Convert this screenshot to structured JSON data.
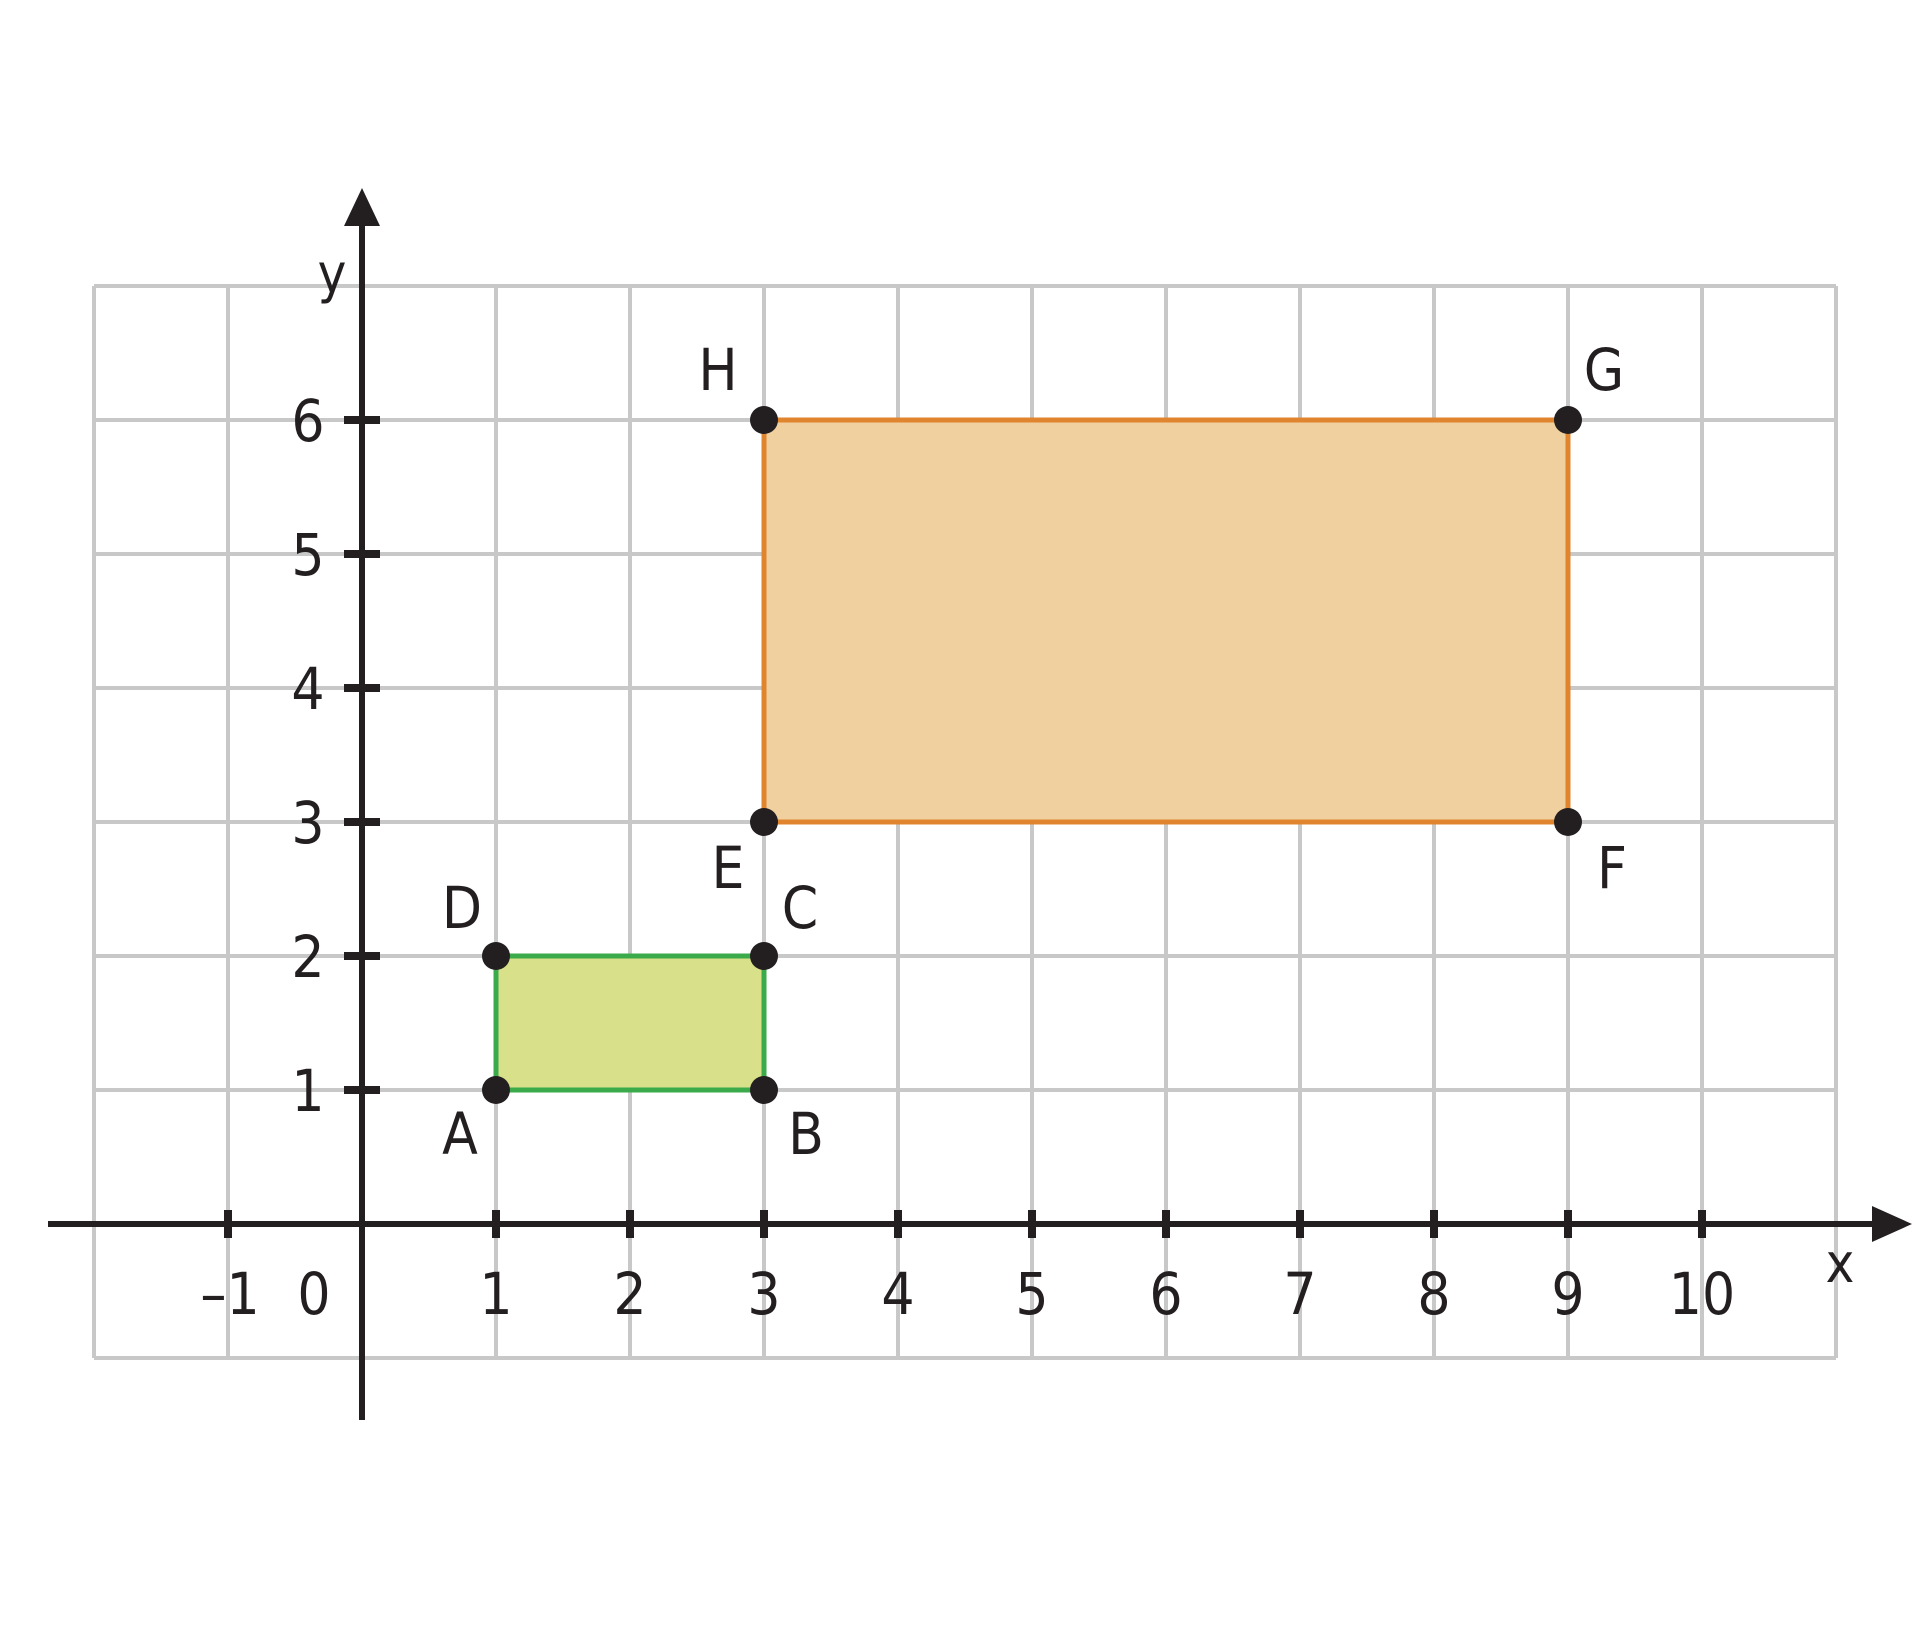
{
  "diagram": {
    "axes": {
      "x_label": "x",
      "y_label": "y",
      "x_ticks": [
        "–1",
        "0",
        "1",
        "2",
        "3",
        "4",
        "5",
        "6",
        "7",
        "8",
        "9",
        "10"
      ],
      "y_ticks": [
        "1",
        "2",
        "3",
        "4",
        "5",
        "6"
      ],
      "x_range": [
        -2,
        11
      ],
      "y_range": [
        -1,
        7
      ]
    },
    "rectangles": [
      {
        "name": "ABCD",
        "fill": "#d8e08a",
        "stroke": "#3aaa4a",
        "vertices": [
          {
            "label": "A",
            "x": 1,
            "y": 1
          },
          {
            "label": "B",
            "x": 3,
            "y": 1
          },
          {
            "label": "C",
            "x": 3,
            "y": 2
          },
          {
            "label": "D",
            "x": 1,
            "y": 2
          }
        ]
      },
      {
        "name": "EFGH",
        "fill": "#f1d0a0",
        "stroke": "#e0852e",
        "vertices": [
          {
            "label": "E",
            "x": 3,
            "y": 3
          },
          {
            "label": "F",
            "x": 9,
            "y": 3
          },
          {
            "label": "G",
            "x": 9,
            "y": 6
          },
          {
            "label": "H",
            "x": 3,
            "y": 6
          }
        ]
      }
    ],
    "colors": {
      "grid": "#c8c8c8",
      "axis": "#231f20",
      "point": "#231f20"
    }
  }
}
